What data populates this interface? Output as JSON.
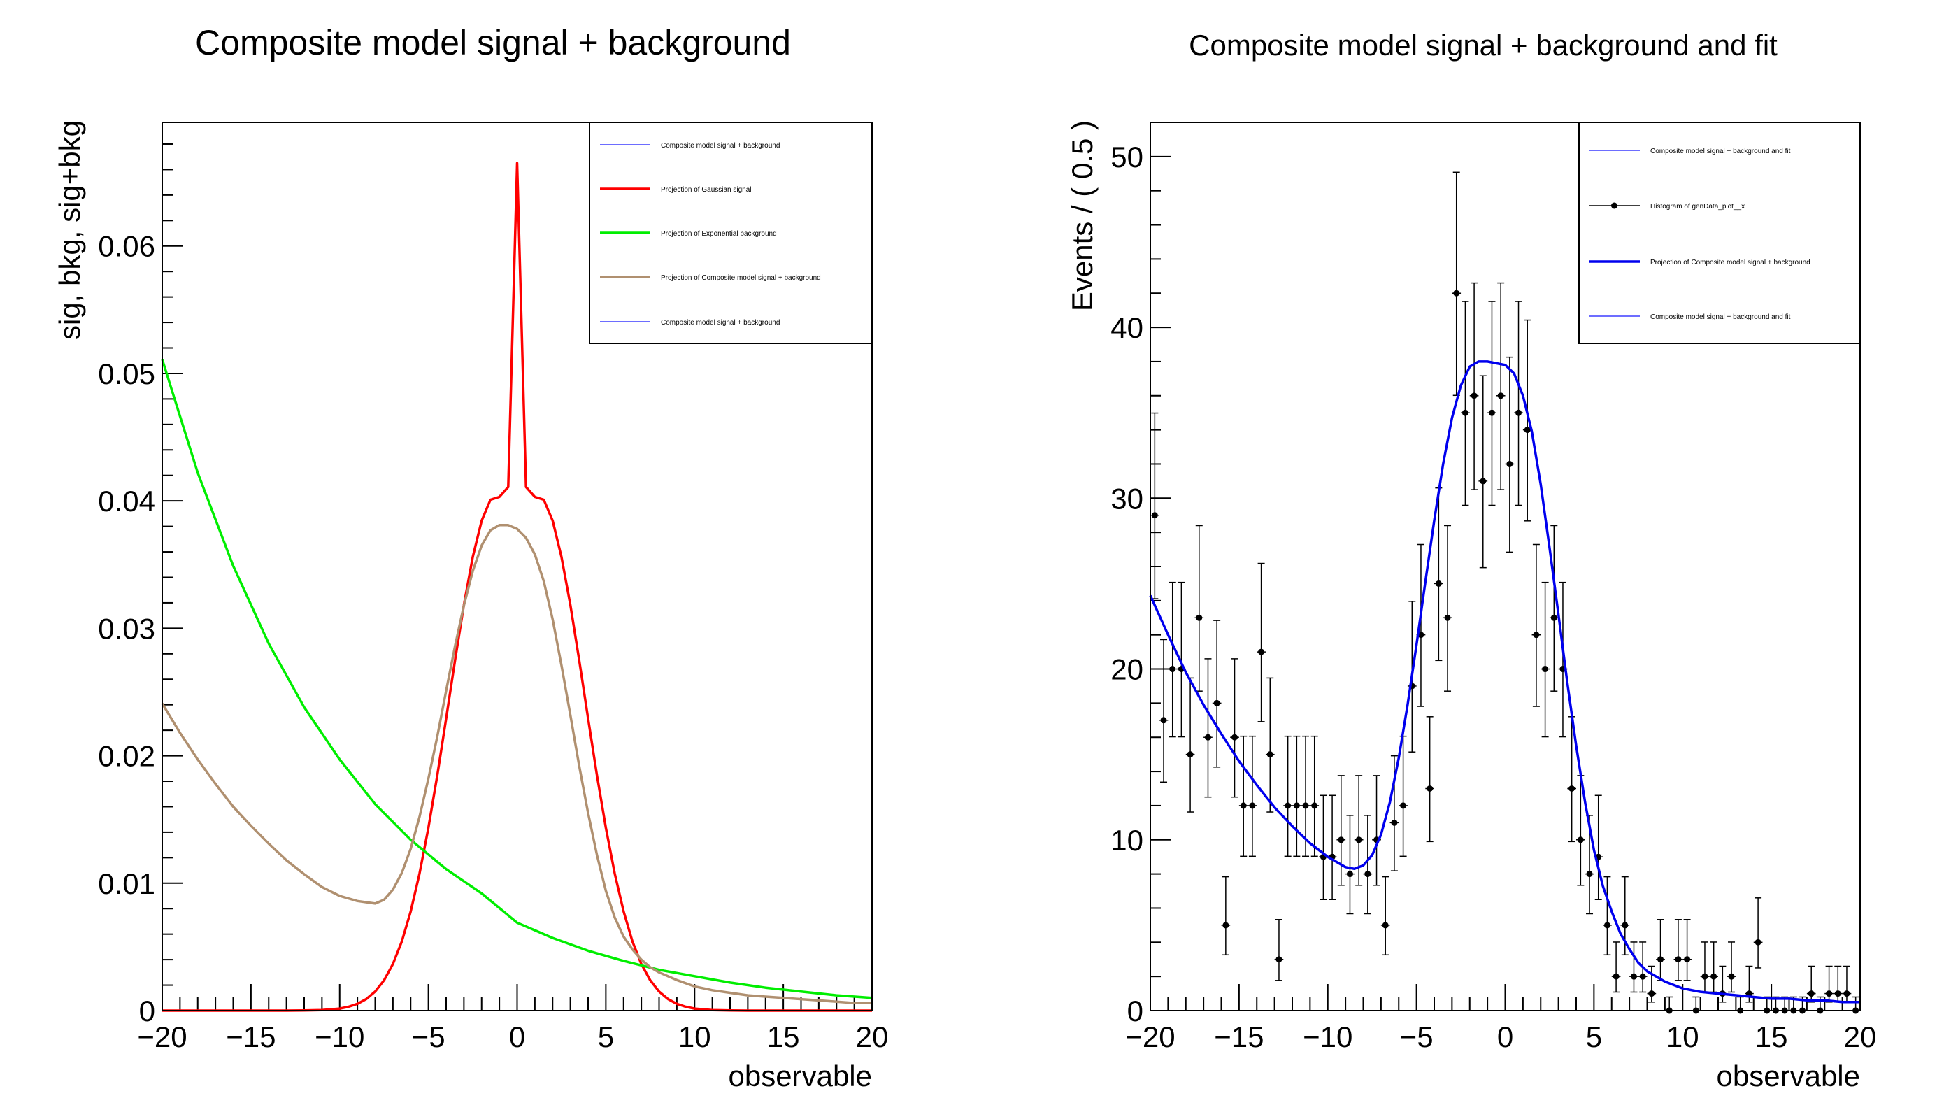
{
  "chart_data": [
    {
      "type": "line",
      "title": "Composite model signal + background",
      "xlabel": "observable",
      "ylabel": "sig, bkg, sig+bkg",
      "xlim": [
        -20,
        20
      ],
      "ylim": [
        0,
        0.0697
      ],
      "x_ticks": [
        "−20",
        "−15",
        "−10",
        "−5",
        "0",
        "5",
        "10",
        "15",
        "20"
      ],
      "y_ticks": [
        "0",
        "0.01",
        "0.02",
        "0.03",
        "0.04",
        "0.05",
        "0.06"
      ],
      "grid": false,
      "legend_position": "top-right",
      "legend": [
        {
          "label": "Composite model signal + background",
          "color": "#3d3dff",
          "style": "thin"
        },
        {
          "label": "Projection of Gaussian signal",
          "color": "#ff0000",
          "style": "thick"
        },
        {
          "label": "Projection of Exponential background",
          "color": "#00ee00",
          "style": "thick"
        },
        {
          "label": "Projection of Composite model signal + background",
          "color": "#b09070",
          "style": "thick"
        },
        {
          "label": "Composite model signal + background",
          "color": "#3d3dff",
          "style": "thin"
        }
      ],
      "series": [
        {
          "name": "Projection of Gaussian signal",
          "color": "#ff0000",
          "x": [
            -20,
            -19,
            -18,
            -17,
            -16,
            -15,
            -14,
            -13,
            -12,
            -11,
            -10,
            -9.5,
            -9,
            -8.5,
            -8,
            -7.5,
            -7,
            -6.5,
            -6,
            -5.5,
            -5,
            -4.5,
            -4,
            -3.5,
            -3,
            -2.5,
            -2,
            -1.5,
            -1,
            -0.5,
            0,
            0.5,
            1,
            1.5,
            2,
            2.5,
            3,
            3.5,
            4,
            4.5,
            5,
            5.5,
            6,
            6.5,
            7,
            7.5,
            8,
            8.5,
            9,
            9.5,
            10,
            11,
            12,
            13,
            14,
            15,
            16,
            17,
            18,
            19,
            20
          ],
          "y": [
            0,
            0,
            0,
            0,
            0,
            0,
            0,
            0,
            1e-05,
            4e-05,
            0.00016,
            0.0003,
            0.00053,
            0.00091,
            0.0015,
            0.00238,
            0.00366,
            0.00543,
            0.00778,
            0.01075,
            0.01434,
            0.01845,
            0.02292,
            0.02749,
            0.03184,
            0.03561,
            0.03845,
            0.04009,
            0.04031,
            0.04109,
            0.0665,
            0.04109,
            0.04031,
            0.04009,
            0.03845,
            0.03561,
            0.03184,
            0.02749,
            0.02292,
            0.01845,
            0.01434,
            0.01075,
            0.00778,
            0.00543,
            0.00366,
            0.00238,
            0.0015,
            0.00091,
            0.00053,
            0.0003,
            0.00016,
            4e-05,
            1e-05,
            0,
            0,
            0,
            0,
            0,
            0,
            0,
            0
          ]
        },
        {
          "name": "Projection of Exponential background",
          "color": "#00ee00",
          "x": [
            -20,
            -18,
            -16,
            -14,
            -12,
            -10,
            -8,
            -6,
            -4,
            -2,
            0,
            2,
            4,
            6,
            8,
            10,
            12,
            14,
            16,
            18,
            20
          ],
          "y": [
            0.0511,
            0.0422,
            0.0349,
            0.0288,
            0.0238,
            0.0197,
            0.0162,
            0.0134,
            0.0111,
            0.0092,
            0.0069,
            0.0057,
            0.0047,
            0.0039,
            0.0032,
            0.0027,
            0.0022,
            0.0018,
            0.0015,
            0.0012,
            0.001
          ]
        },
        {
          "name": "Projection of Composite model signal + background",
          "color": "#b09070",
          "x": [
            -20,
            -19,
            -18,
            -17,
            -16,
            -15,
            -14,
            -13,
            -12,
            -11,
            -10,
            -9,
            -8,
            -7.5,
            -7,
            -6.5,
            -6,
            -5.5,
            -5,
            -4.5,
            -4,
            -3.5,
            -3,
            -2.5,
            -2,
            -1.5,
            -1,
            -0.5,
            0,
            0.5,
            1,
            1.5,
            2,
            2.5,
            3,
            3.5,
            4,
            4.5,
            5,
            5.5,
            6,
            6.5,
            7,
            7.5,
            8,
            9,
            10,
            11,
            12,
            13,
            14,
            15,
            16,
            17,
            18,
            19,
            20
          ],
          "y": [
            0.0241,
            0.0218,
            0.0197,
            0.0178,
            0.016,
            0.0145,
            0.0131,
            0.0118,
            0.0107,
            0.0097,
            0.009,
            0.0086,
            0.0084,
            0.0087,
            0.0095,
            0.0108,
            0.0127,
            0.0152,
            0.0182,
            0.0215,
            0.0251,
            0.0286,
            0.0318,
            0.0345,
            0.0365,
            0.0377,
            0.0381,
            0.0381,
            0.0378,
            0.0371,
            0.0358,
            0.0337,
            0.0307,
            0.0271,
            0.0232,
            0.0192,
            0.0155,
            0.0122,
            0.0094,
            0.0073,
            0.0058,
            0.0048,
            0.004,
            0.0034,
            0.003,
            0.0024,
            0.0019,
            0.0016,
            0.0014,
            0.0012,
            0.0011,
            0.001,
            0.0009,
            0.0008,
            0.0007,
            0.0006,
            0.0006
          ]
        }
      ]
    },
    {
      "type": "scatter",
      "title": "Composite model signal + background and fit",
      "xlabel": "observable",
      "ylabel": "Events / ( 0.5 )",
      "xlim": [
        -20,
        20
      ],
      "ylim": [
        0,
        52
      ],
      "x_ticks": [
        "−20",
        "−15",
        "−10",
        "−5",
        "0",
        "5",
        "10",
        "15",
        "20"
      ],
      "y_ticks": [
        "0",
        "10",
        "20",
        "30",
        "40",
        "50"
      ],
      "grid": false,
      "legend_position": "top-right",
      "legend": [
        {
          "label": "Composite model signal + background and fit",
          "color": "#3d3dff",
          "style": "thin"
        },
        {
          "label": "Histogram of genData_plot__x",
          "color": "#000000",
          "style": "marker"
        },
        {
          "label": "Projection of Composite model signal + background",
          "color": "#0000ee",
          "style": "thick"
        },
        {
          "label": "Composite model signal + background and fit",
          "color": "#3d3dff",
          "style": "thin"
        }
      ],
      "series": [
        {
          "name": "Histogram of genData_plot__x",
          "color": "#000000",
          "x": [
            -19.75,
            -19.25,
            -18.75,
            -18.25,
            -17.75,
            -17.25,
            -16.75,
            -16.25,
            -15.75,
            -15.25,
            -14.75,
            -14.25,
            -13.75,
            -13.25,
            -12.75,
            -12.25,
            -11.75,
            -11.25,
            -10.75,
            -10.25,
            -9.75,
            -9.25,
            -8.75,
            -8.25,
            -7.75,
            -7.25,
            -6.75,
            -6.25,
            -5.75,
            -5.25,
            -4.75,
            -4.25,
            -3.75,
            -3.25,
            -2.75,
            -2.25,
            -1.75,
            -1.25,
            -0.75,
            -0.25,
            0.25,
            0.75,
            1.25,
            1.75,
            2.25,
            2.75,
            3.25,
            3.75,
            4.25,
            4.75,
            5.25,
            5.75,
            6.25,
            6.75,
            7.25,
            7.75,
            8.25,
            8.75,
            9.25,
            9.75,
            10.25,
            10.75,
            11.25,
            11.75,
            12.25,
            12.75,
            13.25,
            13.75,
            14.25,
            14.75,
            15.25,
            15.75,
            16.25,
            16.75,
            17.25,
            17.75,
            18.25,
            18.75,
            19.25,
            19.75
          ],
          "y": [
            29,
            17,
            20,
            20,
            15,
            23,
            16,
            18,
            5,
            16,
            12,
            12,
            21,
            15,
            3,
            12,
            12,
            12,
            12,
            9,
            9,
            10,
            8,
            10,
            8,
            10,
            5,
            11,
            12,
            19,
            22,
            13,
            25,
            23,
            42,
            35,
            36,
            31,
            35,
            36,
            32,
            35,
            34,
            22,
            20,
            23,
            20,
            13,
            10,
            8,
            9,
            5,
            2,
            5,
            2,
            2,
            1,
            3,
            0,
            3,
            3,
            0,
            2,
            2,
            1,
            2,
            0,
            1,
            4,
            0,
            0,
            0,
            0,
            0,
            1,
            0,
            1,
            1,
            1,
            0
          ]
        },
        {
          "name": "Projection of Composite model signal + background",
          "color": "#0000ee",
          "x": [
            -20,
            -19,
            -18,
            -17,
            -16,
            -15,
            -14,
            -13,
            -12,
            -11,
            -10,
            -9,
            -8.5,
            -8,
            -7.5,
            -7,
            -6.5,
            -6,
            -5.5,
            -5,
            -4.5,
            -4,
            -3.5,
            -3,
            -2.5,
            -2,
            -1.5,
            -1,
            -0.5,
            0,
            0.5,
            1,
            1.5,
            2,
            2.5,
            3,
            3.5,
            4,
            4.5,
            5,
            5.5,
            6,
            6.5,
            7,
            7.5,
            8,
            9,
            10,
            11,
            12,
            13,
            14,
            15,
            16,
            17,
            18,
            19,
            20
          ],
          "y": [
            24.3,
            22.0,
            19.8,
            17.9,
            16.2,
            14.6,
            13.2,
            11.9,
            10.8,
            9.8,
            9.0,
            8.4,
            8.3,
            8.5,
            9.1,
            10.3,
            12.2,
            14.8,
            17.9,
            21.4,
            25.1,
            28.7,
            32.0,
            34.7,
            36.6,
            37.7,
            38.0,
            38.0,
            37.9,
            37.8,
            37.3,
            36.0,
            33.9,
            30.8,
            27.1,
            23.2,
            19.2,
            15.5,
            12.2,
            9.4,
            7.3,
            5.8,
            4.5,
            3.6,
            2.8,
            2.3,
            1.7,
            1.3,
            1.1,
            1.0,
            0.9,
            0.8,
            0.7,
            0.7,
            0.6,
            0.6,
            0.5,
            0.5
          ]
        }
      ]
    }
  ]
}
